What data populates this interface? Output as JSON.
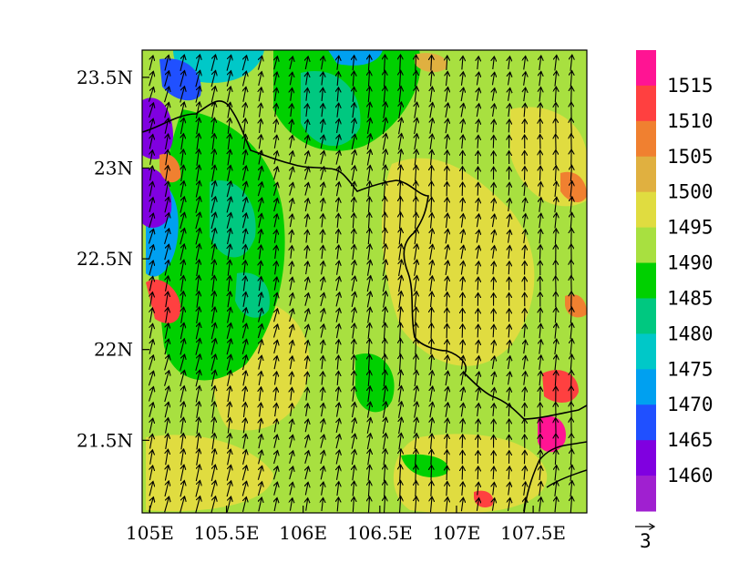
{
  "map": {
    "x_ticks": [
      "105E",
      "105.5E",
      "106E",
      "106.5E",
      "107E",
      "107.5E"
    ],
    "y_ticks": [
      "23.5N",
      "23N",
      "22.5N",
      "22N",
      "21.5N"
    ],
    "lon_range": [
      104.95,
      107.85
    ],
    "lat_range": [
      21.1,
      23.65
    ],
    "x_tick_values": [
      105.0,
      105.5,
      106.0,
      106.5,
      107.0,
      107.5
    ],
    "y_tick_values": [
      23.5,
      23.0,
      22.5,
      22.0,
      21.5
    ],
    "field_shading": "geopotential-like contours with wind vectors",
    "wind_direction": "mostly from the south, turning south-southwest in the west",
    "border_color": "#000000",
    "vector_color": "#000000"
  },
  "colorbar": {
    "labels": [
      "1515",
      "1510",
      "1505",
      "1500",
      "1495",
      "1490",
      "1485",
      "1480",
      "1475",
      "1470",
      "1465",
      "1460"
    ],
    "colors": [
      "#ff1493",
      "#ff4040",
      "#f08030",
      "#e0b040",
      "#e0dc40",
      "#a8e040",
      "#00d000",
      "#00c880",
      "#00c8c8",
      "#00a0f0",
      "#2050ff",
      "#8000e0",
      "#a020d0"
    ]
  },
  "vector_reference": {
    "label": "3"
  }
}
